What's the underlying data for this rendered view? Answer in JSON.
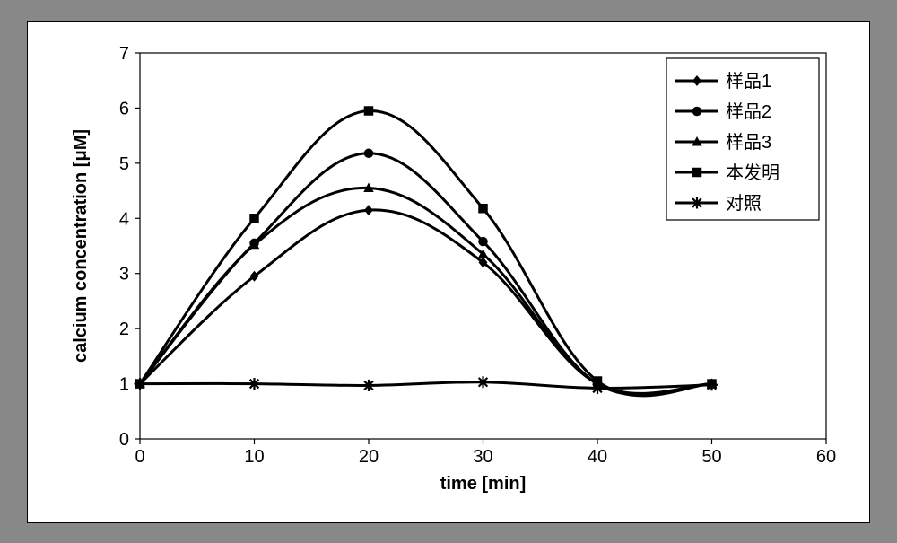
{
  "chart": {
    "type": "line",
    "background_color": "#ffffff",
    "outer_border_color": "#000000",
    "plot_border_color": "#000000",
    "x": {
      "label": "time [min]",
      "min": 0,
      "max": 60,
      "tick_step": 10,
      "ticks": [
        0,
        10,
        20,
        30,
        40,
        50,
        60
      ]
    },
    "y": {
      "label": "calcium concentration [μM]",
      "min": 0,
      "max": 7,
      "tick_step": 1,
      "ticks": [
        0,
        1,
        2,
        3,
        4,
        5,
        6,
        7
      ]
    },
    "label_fontsize": 20,
    "tick_fontsize": 20,
    "line_width": 3,
    "marker_size": 10,
    "series": [
      {
        "name": "样品1",
        "marker": "diamond",
        "color": "#000000",
        "x": [
          0,
          10,
          20,
          30,
          40,
          50
        ],
        "y": [
          1.0,
          2.95,
          4.15,
          3.2,
          1.0,
          1.0
        ]
      },
      {
        "name": "样品2",
        "marker": "circle",
        "color": "#000000",
        "x": [
          0,
          10,
          20,
          30,
          40,
          50
        ],
        "y": [
          1.0,
          3.55,
          5.18,
          3.58,
          1.0,
          1.0
        ]
      },
      {
        "name": "样品3",
        "marker": "triangle",
        "color": "#000000",
        "x": [
          0,
          10,
          20,
          30,
          40,
          50
        ],
        "y": [
          1.0,
          3.52,
          4.55,
          3.35,
          1.0,
          1.0
        ]
      },
      {
        "name": "本发明",
        "marker": "square",
        "color": "#000000",
        "x": [
          0,
          10,
          20,
          30,
          40,
          50
        ],
        "y": [
          1.0,
          4.0,
          5.95,
          4.18,
          1.05,
          1.0
        ]
      },
      {
        "name": "对照",
        "marker": "asterisk",
        "color": "#000000",
        "x": [
          0,
          10,
          20,
          30,
          40,
          50
        ],
        "y": [
          1.0,
          1.0,
          0.97,
          1.03,
          0.92,
          0.98
        ]
      }
    ],
    "legend": {
      "border_color": "#000000",
      "background": "#ffffff",
      "position": "top-right-inside"
    }
  }
}
